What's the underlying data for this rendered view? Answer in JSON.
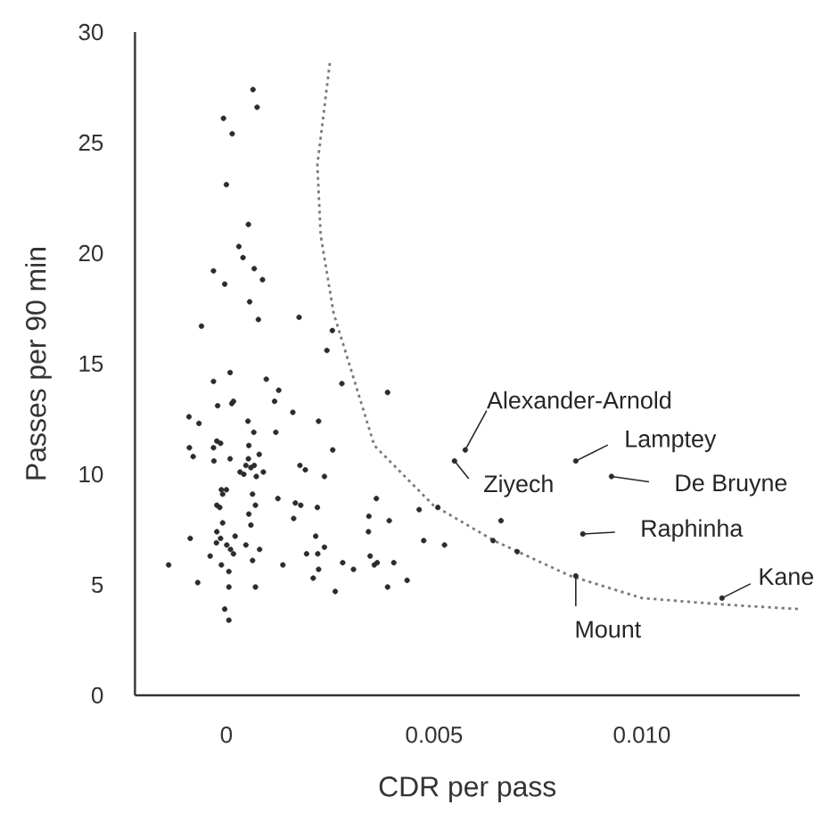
{
  "chart_data": {
    "type": "scatter",
    "xlabel": "CDR per pass",
    "ylabel": "Passes per 90 min",
    "xlim": [
      -0.0022,
      0.0138
    ],
    "ylim": [
      0,
      30
    ],
    "xticks": [
      0,
      0.005,
      {
        "value": 0.01,
        "label": "0.010"
      }
    ],
    "yticks": [
      0,
      5,
      10,
      15,
      20,
      25,
      30
    ],
    "series": [
      {
        "type": "line",
        "color": "#7a7a7a",
        "line_style": "dotted",
        "marker": "none",
        "x": [
          0.00249,
          0.00219,
          0.00227,
          0.00258,
          0.00356,
          0.00498,
          0.00644,
          0.00828,
          0.01,
          0.012,
          0.0138
        ],
        "values": [
          28.6,
          24.0,
          20.8,
          17.3,
          11.3,
          8.6,
          7.0,
          5.4,
          4.4,
          4.1,
          3.9
        ]
      },
      {
        "color": "#2b2b2b",
        "marker": "circle",
        "x": [
          0.00064,
          0.00074,
          -7e-05,
          0.00014,
          0.0,
          0.00053,
          0.0003,
          0.0004,
          -0.00031,
          0.00067,
          0.00087,
          -4e-05,
          0.00056,
          0.00077,
          0.00175,
          -0.0006,
          0.00255,
          0.00242,
          9e-05,
          -0.00031,
          0.00096,
          0.00126,
          0.00278,
          0.00116,
          -0.00021,
          0.00013,
          0.00017,
          0.0016,
          -0.0009,
          -0.00066,
          0.00052,
          0.00222,
          0.00066,
          0.00119,
          -0.00023,
          -0.00014,
          -0.00031,
          0.00054,
          0.00256,
          -0.00089,
          -0.0008,
          9e-05,
          -0.0003,
          0.00079,
          0.00053,
          0.00067,
          0.00177,
          0.0019,
          0.00047,
          0.00059,
          0.00033,
          0.00042,
          0.00089,
          0.00072,
          0.00236,
          -0.00012,
          0.0,
          -9e-05,
          0.00063,
          0.00124,
          0.00166,
          0.00179,
          0.00219,
          -0.00023,
          -0.00016,
          0.0007,
          0.00054,
          0.00162,
          -9e-05,
          0.00059,
          -0.00023,
          -0.00087,
          0.00021,
          -0.00014,
          0.00215,
          -0.00024,
          1e-05,
          0.00047,
          0.00236,
          0.0001,
          0.0008,
          0.00017,
          0.00193,
          0.0022,
          -0.00039,
          0.00063,
          -0.00012,
          0.00136,
          -0.00139,
          0.00222,
          6e-05,
          0.00209,
          -0.00069,
          6e-05,
          0.0007,
          0.00262,
          -4e-05,
          6e-05,
          0.00388,
          0.00361,
          0.00343,
          0.00342,
          0.00346,
          0.00363,
          0.0028,
          0.00306,
          0.00392,
          0.00388,
          0.00464,
          0.00509,
          0.00475,
          0.00525,
          0.00356,
          0.00403,
          0.00435,
          0.00661,
          0.00642,
          0.007,
          0.00575,
          0.00549,
          0.00841,
          0.00927,
          0.00858,
          0.00841,
          0.01193
        ],
        "values": [
          27.4,
          26.6,
          26.1,
          25.4,
          23.1,
          21.3,
          20.3,
          19.8,
          19.2,
          19.3,
          18.8,
          18.6,
          17.8,
          17.0,
          17.1,
          16.7,
          16.5,
          15.6,
          14.6,
          14.2,
          14.3,
          13.8,
          14.1,
          13.3,
          13.1,
          13.2,
          13.3,
          12.8,
          12.6,
          12.3,
          12.4,
          12.4,
          11.9,
          11.9,
          11.5,
          11.4,
          11.2,
          11.3,
          11.1,
          11.2,
          10.8,
          10.7,
          10.6,
          10.9,
          10.7,
          10.4,
          10.4,
          10.2,
          10.4,
          10.3,
          10.1,
          10.0,
          10.1,
          9.9,
          9.9,
          9.3,
          9.3,
          9.1,
          9.1,
          8.9,
          8.7,
          8.6,
          8.5,
          8.6,
          8.5,
          8.6,
          8.2,
          8.0,
          7.8,
          7.7,
          7.4,
          7.1,
          7.2,
          7.1,
          7.2,
          6.9,
          6.8,
          6.8,
          6.7,
          6.6,
          6.6,
          6.4,
          6.4,
          6.4,
          6.3,
          6.1,
          5.9,
          5.9,
          5.9,
          5.7,
          5.6,
          5.3,
          5.1,
          4.9,
          4.9,
          4.7,
          3.9,
          3.4,
          13.7,
          8.9,
          8.1,
          7.4,
          6.3,
          6.0,
          6.0,
          5.7,
          7.9,
          4.9,
          8.4,
          8.5,
          7.0,
          6.8,
          5.9,
          6.0,
          5.2,
          7.9,
          7.0,
          6.5,
          11.1,
          10.6,
          10.6,
          9.9,
          7.3,
          5.4,
          4.4
        ]
      }
    ],
    "annotations": [
      {
        "text": "Alexander-Arnold",
        "x": 0.00575,
        "y": 11.1
      },
      {
        "text": "Ziyech",
        "x": 0.00549,
        "y": 10.6
      },
      {
        "text": "Lamptey",
        "x": 0.00841,
        "y": 10.6
      },
      {
        "text": "De Bruyne",
        "x": 0.00927,
        "y": 9.9
      },
      {
        "text": "Raphinha",
        "x": 0.00858,
        "y": 7.3
      },
      {
        "text": "Mount",
        "x": 0.00841,
        "y": 5.4
      },
      {
        "text": "Kane",
        "x": 0.01193,
        "y": 4.4
      }
    ]
  }
}
